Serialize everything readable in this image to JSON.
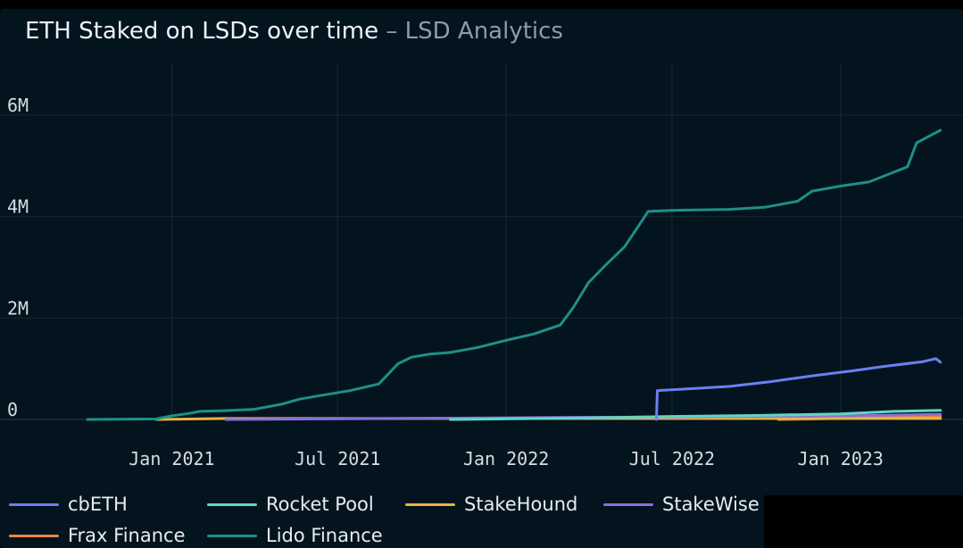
{
  "header": {
    "title": "ETH Staked on LSDs over time",
    "separator": " – ",
    "subtitle": "LSD Analytics"
  },
  "chart_data": {
    "type": "line",
    "title": "ETH Staked on LSDs over time – LSD Analytics",
    "xlabel": "",
    "ylabel": "",
    "xlim": [
      "2020-10-01",
      "2023-05-01"
    ],
    "ylim": [
      0,
      7000000
    ],
    "y_ticks": [
      0,
      2000000,
      4000000,
      6000000
    ],
    "y_tick_labels": [
      "0",
      "2M",
      "4M",
      "6M"
    ],
    "x_tick_dates": [
      "2021-01-01",
      "2021-07-01",
      "2022-01-01",
      "2022-07-01",
      "2023-01-01"
    ],
    "x_tick_labels": [
      "Jan 2021",
      "Jul 2021",
      "Jan 2022",
      "Jul 2022",
      "Jan 2023"
    ],
    "grid": true,
    "legend_position": "bottom",
    "series": [
      {
        "name": "cbETH",
        "color": "#6c7ff0",
        "points": [
          [
            "2022-06-14",
            0
          ],
          [
            "2022-06-15",
            570000
          ],
          [
            "2022-07-15",
            600000
          ],
          [
            "2022-09-01",
            650000
          ],
          [
            "2022-10-15",
            740000
          ],
          [
            "2022-12-01",
            860000
          ],
          [
            "2023-01-15",
            960000
          ],
          [
            "2023-02-15",
            1040000
          ],
          [
            "2023-04-01",
            1140000
          ],
          [
            "2023-04-15",
            1200000
          ],
          [
            "2023-04-20",
            1130000
          ]
        ]
      },
      {
        "name": "Rocket Pool",
        "color": "#5fd6c4",
        "points": [
          [
            "2021-11-01",
            0
          ],
          [
            "2022-04-01",
            30000
          ],
          [
            "2022-07-01",
            60000
          ],
          [
            "2022-10-01",
            80000
          ],
          [
            "2023-01-01",
            110000
          ],
          [
            "2023-03-01",
            160000
          ],
          [
            "2023-04-20",
            180000
          ]
        ]
      },
      {
        "name": "StakeHound",
        "color": "#e8b53e",
        "points": [
          [
            "2020-12-15",
            0
          ],
          [
            "2021-03-01",
            20000
          ],
          [
            "2023-04-20",
            20000
          ]
        ]
      },
      {
        "name": "StakeWise",
        "color": "#8c6fd9",
        "points": [
          [
            "2021-03-01",
            0
          ],
          [
            "2021-09-01",
            20000
          ],
          [
            "2022-03-01",
            40000
          ],
          [
            "2022-07-01",
            50000
          ],
          [
            "2023-01-01",
            70000
          ],
          [
            "2023-04-20",
            100000
          ]
        ]
      },
      {
        "name": "Frax Finance",
        "color": "#e8884b",
        "points": [
          [
            "2022-10-25",
            0
          ],
          [
            "2023-01-01",
            20000
          ],
          [
            "2023-04-20",
            60000
          ]
        ]
      },
      {
        "name": "Lido Finance",
        "color": "#1f8f88",
        "points": [
          [
            "2020-10-01",
            0
          ],
          [
            "2020-12-15",
            10000
          ],
          [
            "2021-01-01",
            70000
          ],
          [
            "2021-01-20",
            120000
          ],
          [
            "2021-02-01",
            160000
          ],
          [
            "2021-03-01",
            175000
          ],
          [
            "2021-04-01",
            200000
          ],
          [
            "2021-05-01",
            300000
          ],
          [
            "2021-05-20",
            400000
          ],
          [
            "2021-06-15",
            480000
          ],
          [
            "2021-07-15",
            570000
          ],
          [
            "2021-08-15",
            700000
          ],
          [
            "2021-09-05",
            1100000
          ],
          [
            "2021-09-20",
            1230000
          ],
          [
            "2021-10-10",
            1290000
          ],
          [
            "2021-11-01",
            1320000
          ],
          [
            "2021-12-01",
            1420000
          ],
          [
            "2022-01-01",
            1560000
          ],
          [
            "2022-02-01",
            1690000
          ],
          [
            "2022-03-01",
            1860000
          ],
          [
            "2022-03-15",
            2200000
          ],
          [
            "2022-04-01",
            2700000
          ],
          [
            "2022-04-20",
            3050000
          ],
          [
            "2022-05-10",
            3400000
          ],
          [
            "2022-05-25",
            3800000
          ],
          [
            "2022-06-05",
            4100000
          ],
          [
            "2022-07-01",
            4120000
          ],
          [
            "2022-09-01",
            4140000
          ],
          [
            "2022-10-10",
            4180000
          ],
          [
            "2022-11-15",
            4300000
          ],
          [
            "2022-12-01",
            4500000
          ],
          [
            "2023-01-01",
            4600000
          ],
          [
            "2023-02-01",
            4680000
          ],
          [
            "2023-03-15",
            4980000
          ],
          [
            "2023-03-25",
            5450000
          ],
          [
            "2023-04-20",
            5700000
          ]
        ]
      }
    ]
  },
  "legend": [
    {
      "name": "cbETH",
      "color": "#6c7ff0"
    },
    {
      "name": "Rocket Pool",
      "color": "#5fd6c4"
    },
    {
      "name": "StakeHound",
      "color": "#e8b53e"
    },
    {
      "name": "StakeWise",
      "color": "#8c6fd9"
    },
    {
      "name": "Frax Finance",
      "color": "#e8884b"
    },
    {
      "name": "Lido Finance",
      "color": "#1f8f88"
    }
  ]
}
